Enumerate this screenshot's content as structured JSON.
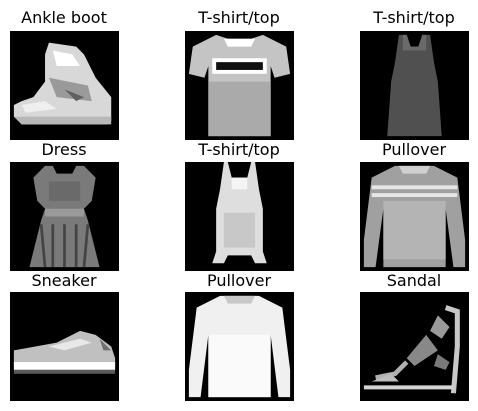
{
  "panels": [
    {
      "title": "Ankle boot",
      "icon": "ankle-boot-image"
    },
    {
      "title": "T-shirt/top",
      "icon": "tshirt-image"
    },
    {
      "title": "T-shirt/top",
      "icon": "tank-top-image"
    },
    {
      "title": "Dress",
      "icon": "dress-image"
    },
    {
      "title": "T-shirt/top",
      "icon": "tank-top-image"
    },
    {
      "title": "Pullover",
      "icon": "pullover-image"
    },
    {
      "title": "Sneaker",
      "icon": "sneaker-image"
    },
    {
      "title": "Pullover",
      "icon": "pullover-image"
    },
    {
      "title": "Sandal",
      "icon": "sandal-image"
    }
  ],
  "colors": {
    "background": "#ffffff",
    "image_background": "#000000"
  }
}
